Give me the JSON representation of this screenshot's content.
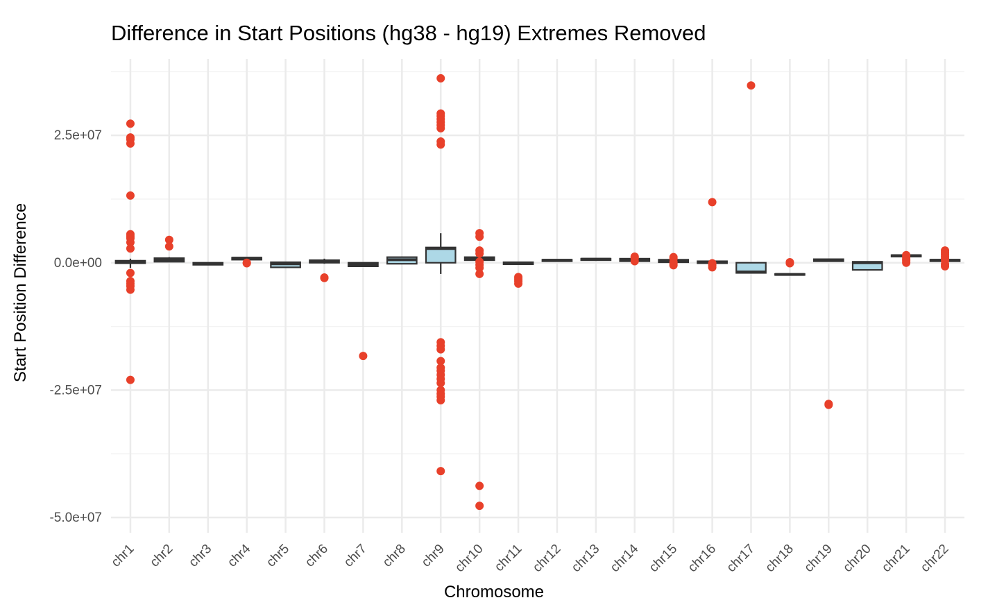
{
  "chart_data": {
    "type": "boxplot",
    "title": "Difference in Start Positions (hg38 - hg19) Extremes Removed",
    "xlabel": "Chromosome",
    "ylabel": "Start Position Difference",
    "ylim": [
      -53000000,
      40000000
    ],
    "yticks": [
      25000000,
      0,
      -25000000,
      -50000000
    ],
    "ytick_labels": [
      "2.5e+07",
      "0.0e+00",
      "-2.5e+07",
      "-5.0e+07"
    ],
    "grid": true,
    "colors": {
      "box_fill": "#add8e6",
      "box_line": "#333333",
      "outlier": "#e8402a",
      "grid": "#ebebeb"
    },
    "categories": [
      "chr1",
      "chr2",
      "chr3",
      "chr4",
      "chr5",
      "chr6",
      "chr7",
      "chr8",
      "chr9",
      "chr10",
      "chr11",
      "chr12",
      "chr13",
      "chr14",
      "chr15",
      "chr16",
      "chr17",
      "chr18",
      "chr19",
      "chr20",
      "chr21",
      "chr22"
    ],
    "boxes": [
      {
        "q1": -100000,
        "median": 200000,
        "q3": 400000,
        "whisker_low": -1000000,
        "whisker_high": 800000
      },
      {
        "q1": 200000,
        "median": 600000,
        "q3": 900000,
        "whisker_low": 100000,
        "whisker_high": 1100000
      },
      {
        "q1": -400000,
        "median": -200000,
        "q3": 0,
        "whisker_low": -500000,
        "whisker_high": 100000
      },
      {
        "q1": 600000,
        "median": 900000,
        "q3": 1000000,
        "whisker_low": 500000,
        "whisker_high": 1100000
      },
      {
        "q1": -900000,
        "median": -200000,
        "q3": 100000,
        "whisker_low": -1000000,
        "whisker_high": 200000
      },
      {
        "q1": 0,
        "median": 300000,
        "q3": 500000,
        "whisker_low": -200000,
        "whisker_high": 800000
      },
      {
        "q1": -700000,
        "median": -300000,
        "q3": 0,
        "whisker_low": -800000,
        "whisker_high": 100000
      },
      {
        "q1": -200000,
        "median": 600000,
        "q3": 1100000,
        "whisker_low": -300000,
        "whisker_high": 1200000
      },
      {
        "q1": 0,
        "median": 2800000,
        "q3": 3000000,
        "whisker_low": -2200000,
        "whisker_high": 5800000
      },
      {
        "q1": 500000,
        "median": 900000,
        "q3": 1100000,
        "whisker_low": 300000,
        "whisker_high": 1300000
      },
      {
        "q1": -300000,
        "median": -100000,
        "q3": 100000,
        "whisker_low": -400000,
        "whisker_high": 200000
      },
      {
        "q1": 300000,
        "median": 500000,
        "q3": 600000,
        "whisker_low": 200000,
        "whisker_high": 700000
      },
      {
        "q1": 500000,
        "median": 700000,
        "q3": 800000,
        "whisker_low": 400000,
        "whisker_high": 900000
      },
      {
        "q1": 300000,
        "median": 600000,
        "q3": 800000,
        "whisker_low": 200000,
        "whisker_high": 900000
      },
      {
        "q1": 100000,
        "median": 400000,
        "q3": 600000,
        "whisker_low": 0,
        "whisker_high": 700000
      },
      {
        "q1": -100000,
        "median": 100000,
        "q3": 300000,
        "whisker_low": -200000,
        "whisker_high": 400000
      },
      {
        "q1": -2000000,
        "median": -1800000,
        "q3": 0,
        "whisker_low": -2100000,
        "whisker_high": 100000
      },
      {
        "q1": -2400000,
        "median": -2300000,
        "q3": -2200000,
        "whisker_low": -2500000,
        "whisker_high": -2100000
      },
      {
        "q1": 300000,
        "median": 500000,
        "q3": 700000,
        "whisker_low": 200000,
        "whisker_high": 800000
      },
      {
        "q1": -1400000,
        "median": 0,
        "q3": 200000,
        "whisker_low": -1500000,
        "whisker_high": 300000
      },
      {
        "q1": 1200000,
        "median": 1400000,
        "q3": 1500000,
        "whisker_low": 1100000,
        "whisker_high": 1600000
      },
      {
        "q1": 300000,
        "median": 500000,
        "q3": 600000,
        "whisker_low": 200000,
        "whisker_high": 700000
      }
    ],
    "outliers": [
      [
        27300000,
        24600000,
        24200000,
        23400000,
        13200000,
        5600000,
        5200000,
        4800000,
        4000000,
        2800000,
        -2000000,
        -3600000,
        -4100000,
        -4600000,
        -5300000,
        -23000000
      ],
      [
        4500000,
        3200000
      ],
      [],
      [
        0,
        -100000
      ],
      [],
      [
        -2900000,
        -3000000
      ],
      [
        -18300000
      ],
      [],
      [
        36200000,
        29300000,
        28800000,
        28200000,
        27600000,
        27000000,
        26400000,
        23800000,
        23200000,
        -15600000,
        -16300000,
        -17000000,
        -19300000,
        -20600000,
        -21200000,
        -22000000,
        -22800000,
        -23600000,
        -25000000,
        -25700000,
        -26300000,
        -27000000,
        -40900000
      ],
      [
        5800000,
        5100000,
        2400000,
        1800000,
        200000,
        -400000,
        -1000000,
        -2200000,
        -43800000,
        -47700000
      ],
      [
        -2800000,
        -3200000,
        -3600000,
        -4100000
      ],
      [],
      [],
      [
        1200000,
        900000,
        300000
      ],
      [
        1100000,
        800000,
        100000,
        -200000,
        -500000
      ],
      [
        11900000,
        -100000,
        -500000,
        -900000
      ],
      [
        34800000
      ],
      [
        100000,
        -100000
      ],
      [
        -27700000,
        -27900000
      ],
      [],
      [
        1500000,
        1100000,
        700000,
        400000,
        0
      ],
      [
        2400000,
        2000000,
        1600000,
        1200000,
        800000,
        400000,
        -300000,
        -700000
      ]
    ]
  }
}
